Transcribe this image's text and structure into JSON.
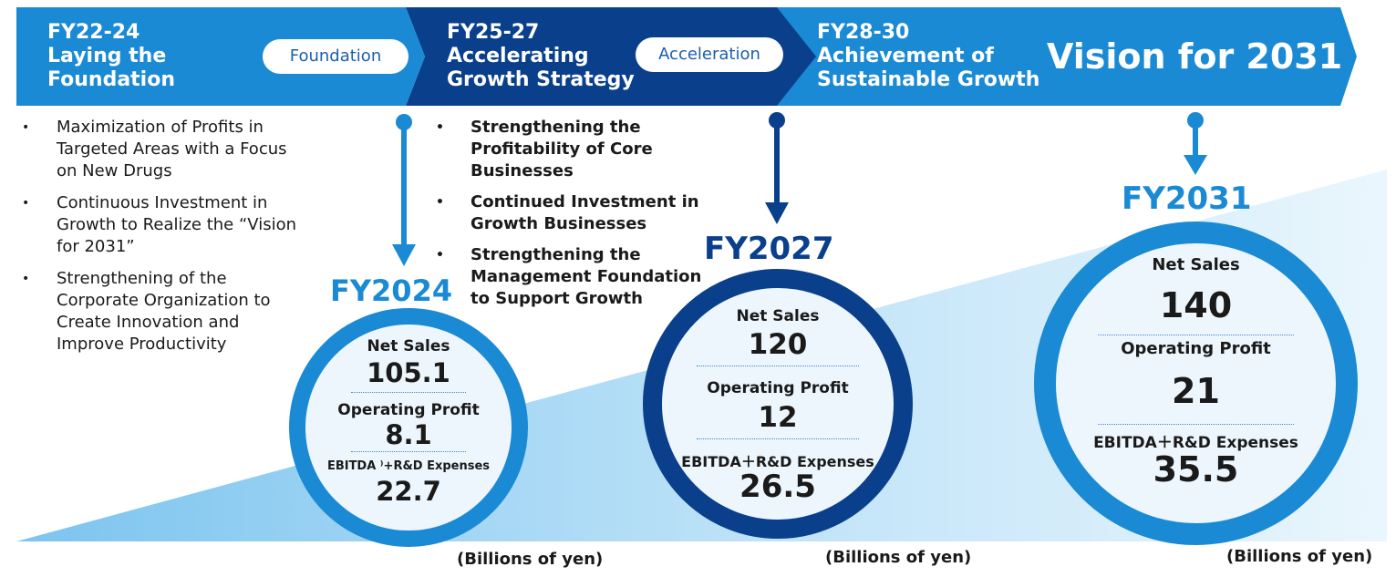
{
  "header": {
    "phases": [
      {
        "period": "FY22-24",
        "line1": "Laying the",
        "line2": "Foundation",
        "pill": "Foundation"
      },
      {
        "period": "FY25-27",
        "line1": "Accelerating",
        "line2": "Growth Strategy",
        "pill": "Acceleration"
      },
      {
        "period": "FY28-30",
        "line1": "Achievement of",
        "line2": "Sustainable Growth"
      }
    ],
    "vision": "Vision for 2031"
  },
  "strategies": {
    "phase1": [
      "Maximization of Profits in Targeted Areas with a Focus on New Drugs",
      "Continuous Investment in Growth to Realize the “Vision for 2031”",
      "Strengthening of the Corporate Organization to Create Innovation and Improve Productivity"
    ],
    "phase2": [
      "Strengthening the Profitability of Core Businesses",
      "Continued Investment in Growth Businesses",
      "Strengthening the Management Foundation to Support Growth"
    ],
    "bullet": "•"
  },
  "targets": [
    {
      "year": "FY2024",
      "net_sales_label": "Net Sales",
      "net_sales": "105.1",
      "op_label": "Operating Profit",
      "op": "8.1",
      "ebitda_label": "EBITDA ⁾+R&D Expenses",
      "ebitda": "22.7",
      "units": "(Billions of yen)"
    },
    {
      "year": "FY2027",
      "net_sales_label": "Net Sales",
      "net_sales": "120",
      "op_label": "Operating Profit",
      "op": "12",
      "ebitda_label": "EBITDA＋R&D Expenses",
      "ebitda": "26.5",
      "units": "(Billions of yen)"
    },
    {
      "year": "FY2031",
      "net_sales_label": "Net Sales",
      "net_sales": "140",
      "op_label": "Operating Profit",
      "op": "21",
      "ebitda_label": "EBITDA＋R&D Expenses",
      "ebitda": "35.5",
      "units": "(Billions of yen)"
    }
  ],
  "colors": {
    "light_blue": "#1a8ad4",
    "dark_blue": "#0a3f8c",
    "mid_blue": "#1a5fb0",
    "wedge": "#8ecdf2"
  }
}
